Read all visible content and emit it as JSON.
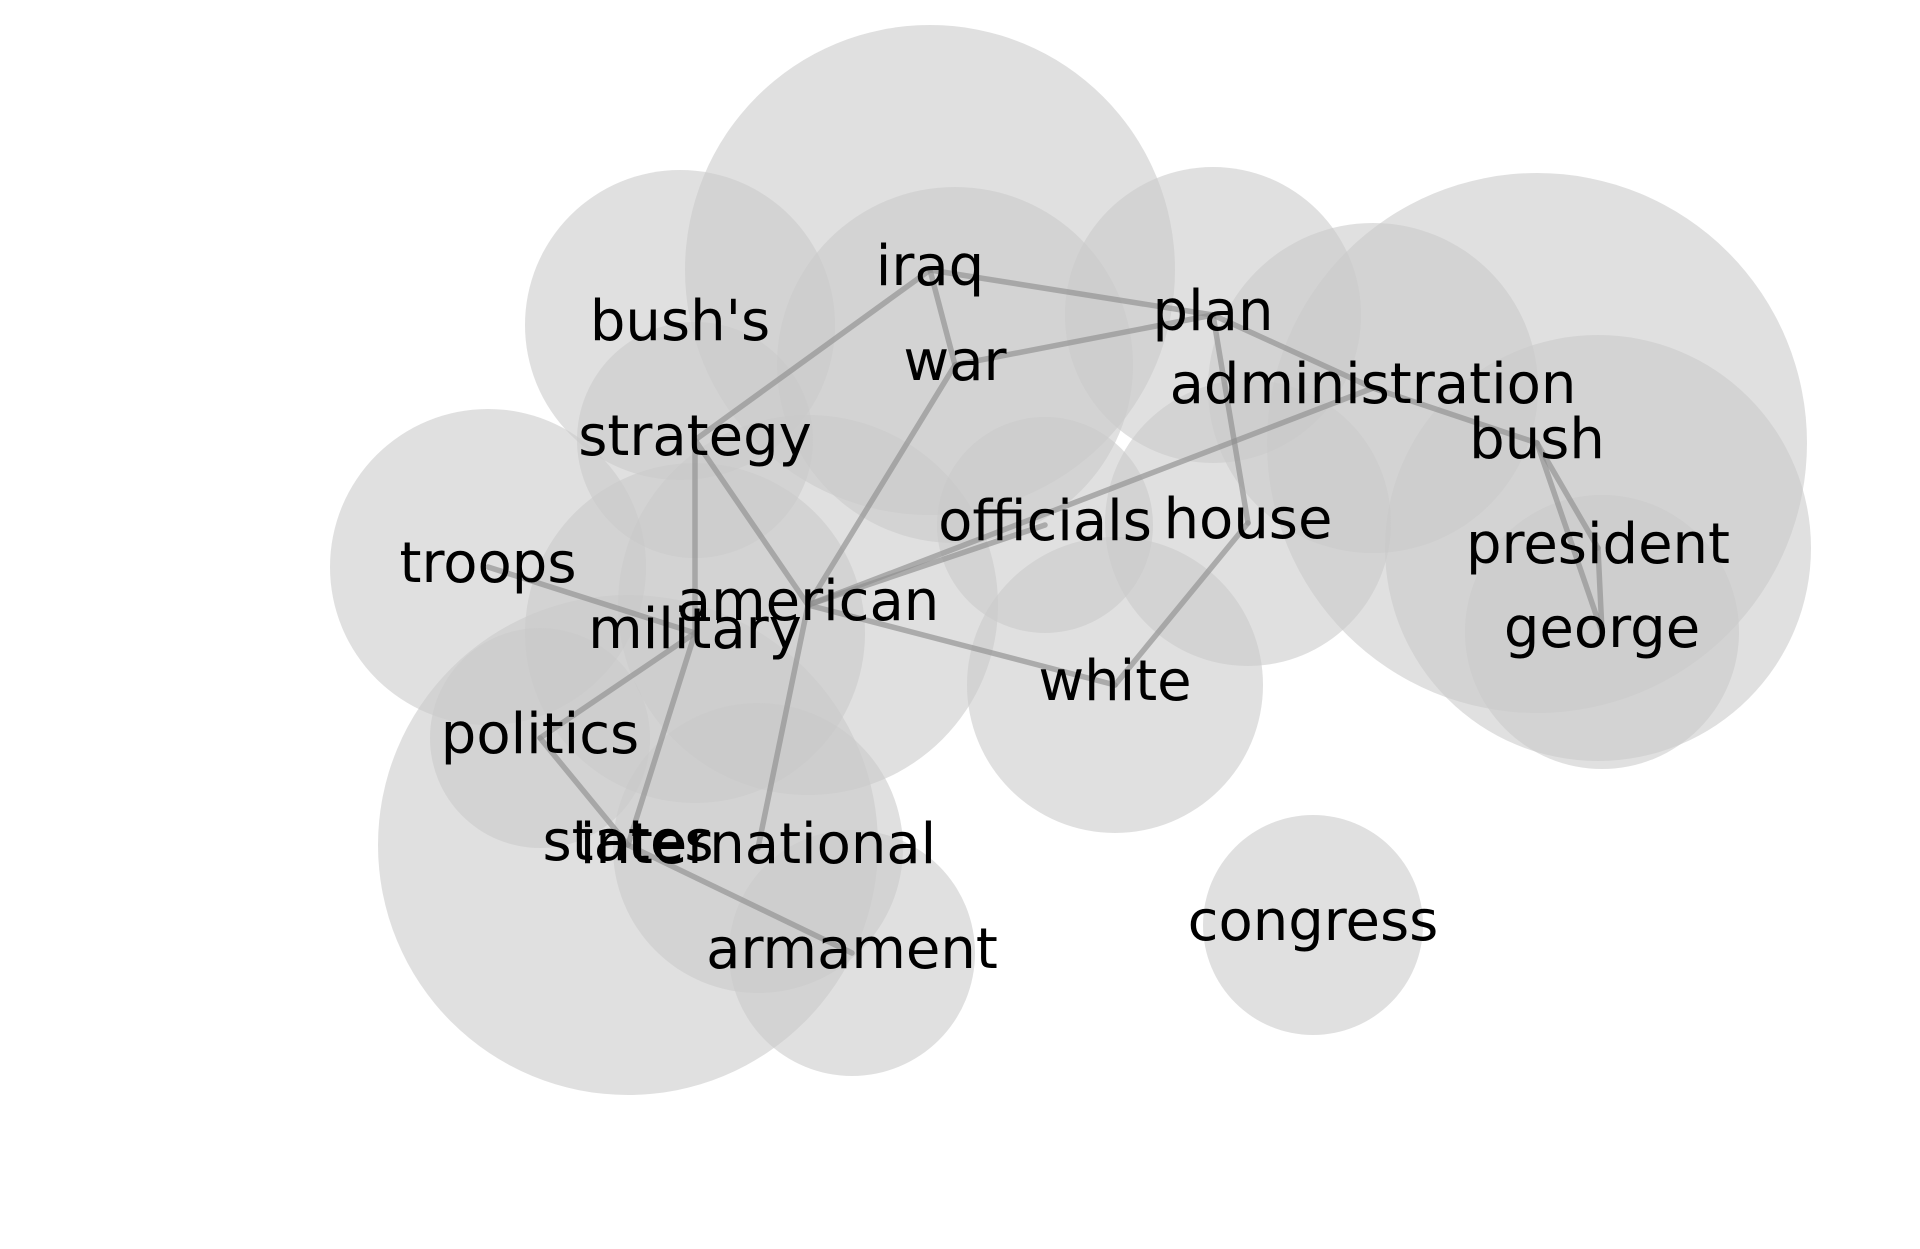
{
  "diagram": {
    "type": "word-cooccurrence-network",
    "colors": {
      "node_fill": "#c9c9c9",
      "edge": "#8f8f8f",
      "label": "#000000",
      "background": "#ffffff"
    },
    "nodes": [
      {
        "id": "iraq",
        "label": "iraq"
      },
      {
        "id": "war",
        "label": "war"
      },
      {
        "id": "plan",
        "label": "plan"
      },
      {
        "id": "bushs",
        "label": "bush's"
      },
      {
        "id": "strategy",
        "label": "strategy"
      },
      {
        "id": "administration",
        "label": "administration"
      },
      {
        "id": "bush",
        "label": "bush"
      },
      {
        "id": "president",
        "label": "president"
      },
      {
        "id": "george",
        "label": "george"
      },
      {
        "id": "troops",
        "label": "troops"
      },
      {
        "id": "officials",
        "label": "officials"
      },
      {
        "id": "house",
        "label": "house"
      },
      {
        "id": "american",
        "label": "american"
      },
      {
        "id": "military",
        "label": "military"
      },
      {
        "id": "white",
        "label": "white"
      },
      {
        "id": "politics",
        "label": "politics"
      },
      {
        "id": "states",
        "label": "states"
      },
      {
        "id": "international",
        "label": "international"
      },
      {
        "id": "armament",
        "label": "armament"
      },
      {
        "id": "congress",
        "label": "congress"
      }
    ],
    "edges": [
      [
        "iraq",
        "plan"
      ],
      [
        "iraq",
        "war"
      ],
      [
        "iraq",
        "strategy"
      ],
      [
        "war",
        "plan"
      ],
      [
        "war",
        "american"
      ],
      [
        "plan",
        "administration"
      ],
      [
        "plan",
        "house"
      ],
      [
        "administration",
        "bush"
      ],
      [
        "administration",
        "american"
      ],
      [
        "bush",
        "president"
      ],
      [
        "bush",
        "george"
      ],
      [
        "president",
        "george"
      ],
      [
        "strategy",
        "american"
      ],
      [
        "strategy",
        "military"
      ],
      [
        "troops",
        "military"
      ],
      [
        "american",
        "officials"
      ],
      [
        "american",
        "white"
      ],
      [
        "american",
        "international"
      ],
      [
        "house",
        "white"
      ],
      [
        "military",
        "politics"
      ],
      [
        "military",
        "states"
      ],
      [
        "politics",
        "states"
      ],
      [
        "states",
        "armament"
      ]
    ]
  }
}
